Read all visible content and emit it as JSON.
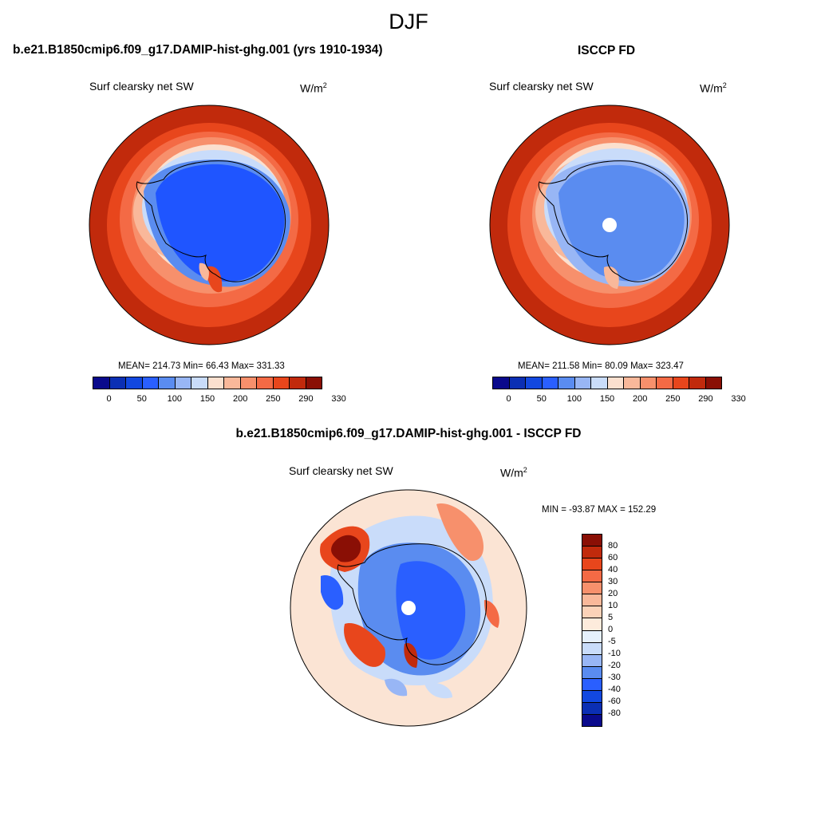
{
  "season": "DJF",
  "panel_left": {
    "title": "b.e21.B1850cmip6.f09_g17.DAMIP-hist-ghg.001 (yrs 1910-1934)",
    "variable": "Surf clearsky net SW",
    "units_base": "W/m",
    "units_exp": "2",
    "stats": "MEAN= 214.73  Min=  66.43  Max= 331.33",
    "mean": 214.73,
    "min": 66.43,
    "max": 331.33
  },
  "panel_right": {
    "title": "ISCCP FD",
    "variable": "Surf clearsky net SW",
    "units_base": "W/m",
    "units_exp": "2",
    "stats": "MEAN= 211.58  Min=  80.09  Max= 323.47",
    "mean": 211.58,
    "min": 80.09,
    "max": 323.47
  },
  "panel_diff": {
    "title": "b.e21.B1850cmip6.f09_g17.DAMIP-hist-ghg.001 - ISCCP FD",
    "variable": "Surf clearsky net SW",
    "units": "W/m",
    "units_exp": "2",
    "stats": "MIN = -93.87 MAX = 152.29",
    "min": -93.87,
    "max": 152.29
  },
  "colorbar_abs": {
    "colors": [
      "#0a0a8c",
      "#0b2fb4",
      "#1248e0",
      "#2a5fff",
      "#5a8cf0",
      "#98b6f5",
      "#c9dcfa",
      "#fbe0cf",
      "#f9b89a",
      "#f7906c",
      "#f46a45",
      "#e8461c",
      "#c12a0c",
      "#8a0f05"
    ],
    "labels": [
      "0",
      "50",
      "100",
      "150",
      "200",
      "250",
      "290",
      "330"
    ]
  },
  "colorbar_diff": {
    "colors": [
      "#8a0f05",
      "#c12a0c",
      "#e8461c",
      "#f46a45",
      "#f7906c",
      "#f9b89a",
      "#fbd2b8",
      "#fdebdc",
      "#e6f0fc",
      "#c9dcfa",
      "#98b6f5",
      "#5a8cf0",
      "#2a5fff",
      "#1248e0",
      "#0b2fb4",
      "#0a0a8c"
    ],
    "labels": [
      "80",
      "60",
      "40",
      "30",
      "20",
      "10",
      "5",
      "0",
      "-5",
      "-10",
      "-20",
      "-30",
      "-40",
      "-60",
      "-80"
    ]
  }
}
